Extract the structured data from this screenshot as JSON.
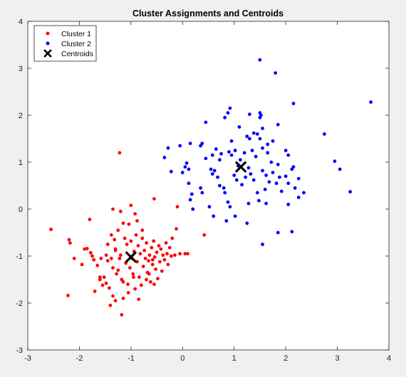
{
  "chart_data": {
    "type": "scatter",
    "title": "Cluster Assignments and Centroids",
    "xlabel": "",
    "ylabel": "",
    "xlim": [
      -3,
      4
    ],
    "ylim": [
      -3,
      4
    ],
    "xticks": [
      -3,
      -2,
      -1,
      0,
      1,
      2,
      3,
      4
    ],
    "yticks": [
      -3,
      -2,
      -1,
      0,
      1,
      2,
      3,
      4
    ],
    "grid": false,
    "legend_position": "top-left",
    "series": [
      {
        "name": "Cluster 1",
        "color": "#ff0000",
        "marker": "dot",
        "points": [
          [
            -2.55,
            -0.43
          ],
          [
            -2.2,
            -0.65
          ],
          [
            -2.18,
            -0.72
          ],
          [
            -2.1,
            -1.05
          ],
          [
            -2.22,
            -1.84
          ],
          [
            -1.95,
            -1.18
          ],
          [
            -1.9,
            -0.85
          ],
          [
            -1.85,
            -0.84
          ],
          [
            -1.78,
            -0.93
          ],
          [
            -1.75,
            -1.0
          ],
          [
            -1.72,
            -1.08
          ],
          [
            -1.7,
            -1.75
          ],
          [
            -1.8,
            -0.22
          ],
          [
            -1.65,
            -1.2
          ],
          [
            -1.6,
            -1.5
          ],
          [
            -1.58,
            -1.05
          ],
          [
            -1.55,
            -1.62
          ],
          [
            -1.52,
            -1.45
          ],
          [
            -1.48,
            -0.98
          ],
          [
            -1.45,
            -1.1
          ],
          [
            -1.42,
            -1.68
          ],
          [
            -1.4,
            -2.05
          ],
          [
            -1.38,
            -0.55
          ],
          [
            -1.35,
            -1.25
          ],
          [
            -1.32,
            -0.65
          ],
          [
            -1.3,
            -0.85
          ],
          [
            -1.28,
            -1.38
          ],
          [
            -1.25,
            -0.45
          ],
          [
            -1.22,
            -1.05
          ],
          [
            -1.2,
            -0.98
          ],
          [
            -1.18,
            -1.5
          ],
          [
            -1.15,
            -1.9
          ],
          [
            -1.12,
            -0.62
          ],
          [
            -1.1,
            -1.15
          ],
          [
            -1.08,
            -0.75
          ],
          [
            -1.06,
            -1.6
          ],
          [
            -1.04,
            -0.32
          ],
          [
            -1.02,
            -1.25
          ],
          [
            -1.0,
            -0.68
          ],
          [
            -0.98,
            -1.05
          ],
          [
            -0.96,
            -1.38
          ],
          [
            -0.94,
            -0.9
          ],
          [
            -0.92,
            -1.7
          ],
          [
            -0.9,
            -0.55
          ],
          [
            -0.88,
            -1.12
          ],
          [
            -0.86,
            -0.78
          ],
          [
            -0.84,
            -1.45
          ],
          [
            -0.82,
            -0.95
          ],
          [
            -0.8,
            -1.62
          ],
          [
            -0.78,
            -0.62
          ],
          [
            -0.76,
            -1.22
          ],
          [
            -0.74,
            -0.88
          ],
          [
            -0.72,
            -1.05
          ],
          [
            -0.7,
            -0.72
          ],
          [
            -0.68,
            -1.35
          ],
          [
            -0.66,
            -1.1
          ],
          [
            -0.64,
            -0.98
          ],
          [
            -0.62,
            -1.55
          ],
          [
            -0.6,
            -0.82
          ],
          [
            -0.58,
            -1.18
          ],
          [
            -0.56,
            -0.68
          ],
          [
            -0.54,
            -1.02
          ],
          [
            -0.52,
            -1.28
          ],
          [
            -0.5,
            -0.92
          ],
          [
            -0.48,
            -1.48
          ],
          [
            -0.46,
            -0.78
          ],
          [
            -0.44,
            -1.12
          ],
          [
            -0.42,
            -0.85
          ],
          [
            -0.4,
            -1.32
          ],
          [
            -0.38,
            -0.98
          ],
          [
            -0.35,
            -1.08
          ],
          [
            -0.32,
            -0.72
          ],
          [
            -0.3,
            -0.95
          ],
          [
            -0.28,
            -1.18
          ],
          [
            -0.25,
            -0.82
          ],
          [
            -0.22,
            -1.0
          ],
          [
            -0.2,
            -0.62
          ],
          [
            -0.15,
            -0.98
          ],
          [
            -0.12,
            -0.42
          ],
          [
            -0.1,
            0.05
          ],
          [
            -0.05,
            -0.95
          ],
          [
            0.05,
            -0.95
          ],
          [
            0.1,
            -0.95
          ],
          [
            0.42,
            -0.55
          ],
          [
            -0.55,
            0.22
          ],
          [
            -1.22,
            1.2
          ],
          [
            -1.0,
            0.08
          ],
          [
            -0.92,
            -0.1
          ],
          [
            -1.18,
            -2.25
          ],
          [
            -1.3,
            -1.95
          ],
          [
            -1.6,
            -1.45
          ],
          [
            -1.05,
            -1.78
          ],
          [
            -0.85,
            -1.92
          ],
          [
            -1.15,
            -1.55
          ],
          [
            -1.25,
            -1.3
          ],
          [
            -0.95,
            -1.45
          ],
          [
            -0.7,
            -1.5
          ],
          [
            -0.65,
            -1.38
          ],
          [
            -1.48,
            -1.58
          ],
          [
            -0.55,
            -1.6
          ],
          [
            -1.3,
            -0.88
          ],
          [
            -1.45,
            -0.75
          ],
          [
            -0.78,
            -0.45
          ],
          [
            -1.35,
            0.0
          ],
          [
            -1.15,
            -0.3
          ],
          [
            -1.2,
            -0.05
          ],
          [
            -0.88,
            -0.25
          ],
          [
            -1.35,
            -1.85
          ],
          [
            -1.38,
            -1.05
          ],
          [
            -0.58,
            -1.08
          ]
        ]
      },
      {
        "name": "Cluster 2",
        "color": "#0000ff",
        "marker": "dot",
        "points": [
          [
            1.5,
            3.18
          ],
          [
            1.8,
            2.9
          ],
          [
            3.65,
            2.28
          ],
          [
            2.15,
            2.25
          ],
          [
            0.92,
            2.15
          ],
          [
            0.88,
            2.05
          ],
          [
            0.82,
            1.95
          ],
          [
            1.3,
            2.02
          ],
          [
            1.5,
            2.05
          ],
          [
            1.52,
            2.0
          ],
          [
            2.75,
            1.6
          ],
          [
            1.5,
            1.5
          ],
          [
            1.45,
            1.6
          ],
          [
            1.38,
            1.62
          ],
          [
            1.1,
            1.75
          ],
          [
            1.85,
            1.8
          ],
          [
            1.55,
            1.72
          ],
          [
            1.5,
            1.95
          ],
          [
            1.25,
            1.55
          ],
          [
            1.3,
            1.5
          ],
          [
            0.45,
            1.85
          ],
          [
            0.15,
            1.4
          ],
          [
            0.38,
            1.4
          ],
          [
            0.35,
            1.35
          ],
          [
            -0.05,
            1.35
          ],
          [
            -0.35,
            1.1
          ],
          [
            -0.28,
            1.3
          ],
          [
            0.58,
            1.15
          ],
          [
            0.72,
            1.05
          ],
          [
            0.75,
            1.18
          ],
          [
            0.65,
            1.28
          ],
          [
            0.9,
            1.22
          ],
          [
            0.95,
            1.15
          ],
          [
            1.02,
            1.25
          ],
          [
            1.08,
            0.92
          ],
          [
            1.12,
            1.05
          ],
          [
            1.2,
            1.2
          ],
          [
            1.35,
            1.25
          ],
          [
            1.42,
            1.12
          ],
          [
            1.55,
            1.3
          ],
          [
            1.65,
            1.2
          ],
          [
            1.72,
            1.0
          ],
          [
            1.85,
            0.95
          ],
          [
            2.0,
            1.25
          ],
          [
            2.05,
            1.15
          ],
          [
            2.12,
            0.85
          ],
          [
            2.15,
            0.9
          ],
          [
            2.0,
            0.7
          ],
          [
            2.05,
            0.55
          ],
          [
            2.18,
            0.45
          ],
          [
            2.25,
            0.25
          ],
          [
            2.05,
            0.1
          ],
          [
            2.35,
            0.35
          ],
          [
            2.12,
            -0.48
          ],
          [
            1.85,
            -0.5
          ],
          [
            1.55,
            -0.75
          ],
          [
            1.25,
            -0.3
          ],
          [
            1.02,
            -0.15
          ],
          [
            0.85,
            -0.25
          ],
          [
            0.6,
            -0.15
          ],
          [
            0.52,
            0.05
          ],
          [
            0.12,
            0.55
          ],
          [
            0.18,
            0.32
          ],
          [
            0.15,
            0.2
          ],
          [
            0.2,
            0.0
          ],
          [
            0.08,
            0.98
          ],
          [
            0.05,
            0.9
          ],
          [
            0.12,
            0.85
          ],
          [
            0.0,
            0.78
          ],
          [
            -0.22,
            0.8
          ],
          [
            0.38,
            0.35
          ],
          [
            0.35,
            0.45
          ],
          [
            0.58,
            0.75
          ],
          [
            0.62,
            0.82
          ],
          [
            0.68,
            0.68
          ],
          [
            0.72,
            0.5
          ],
          [
            0.8,
            0.45
          ],
          [
            0.82,
            0.35
          ],
          [
            0.88,
            0.15
          ],
          [
            0.92,
            0.05
          ],
          [
            1.0,
            0.72
          ],
          [
            1.05,
            0.62
          ],
          [
            1.15,
            0.52
          ],
          [
            1.22,
            0.68
          ],
          [
            1.28,
            0.88
          ],
          [
            1.32,
            0.75
          ],
          [
            1.38,
            0.62
          ],
          [
            1.45,
            0.35
          ],
          [
            1.48,
            0.18
          ],
          [
            1.55,
            0.82
          ],
          [
            1.62,
            0.72
          ],
          [
            1.68,
            0.58
          ],
          [
            1.75,
            0.78
          ],
          [
            1.82,
            0.55
          ],
          [
            1.88,
            0.68
          ],
          [
            1.92,
            0.38
          ],
          [
            2.25,
            0.65
          ],
          [
            1.62,
            0.12
          ],
          [
            2.95,
            1.02
          ],
          [
            3.05,
            0.85
          ],
          [
            3.25,
            0.37
          ],
          [
            1.6,
            0.42
          ],
          [
            1.28,
            0.12
          ],
          [
            0.95,
            1.45
          ],
          [
            0.55,
            0.85
          ],
          [
            0.45,
            1.08
          ],
          [
            1.65,
            1.38
          ],
          [
            1.75,
            1.45
          ]
        ]
      },
      {
        "name": "Centroids",
        "color": "#000000",
        "marker": "x",
        "points": [
          [
            -1.0,
            -1.02
          ],
          [
            1.13,
            0.9
          ]
        ]
      }
    ]
  }
}
